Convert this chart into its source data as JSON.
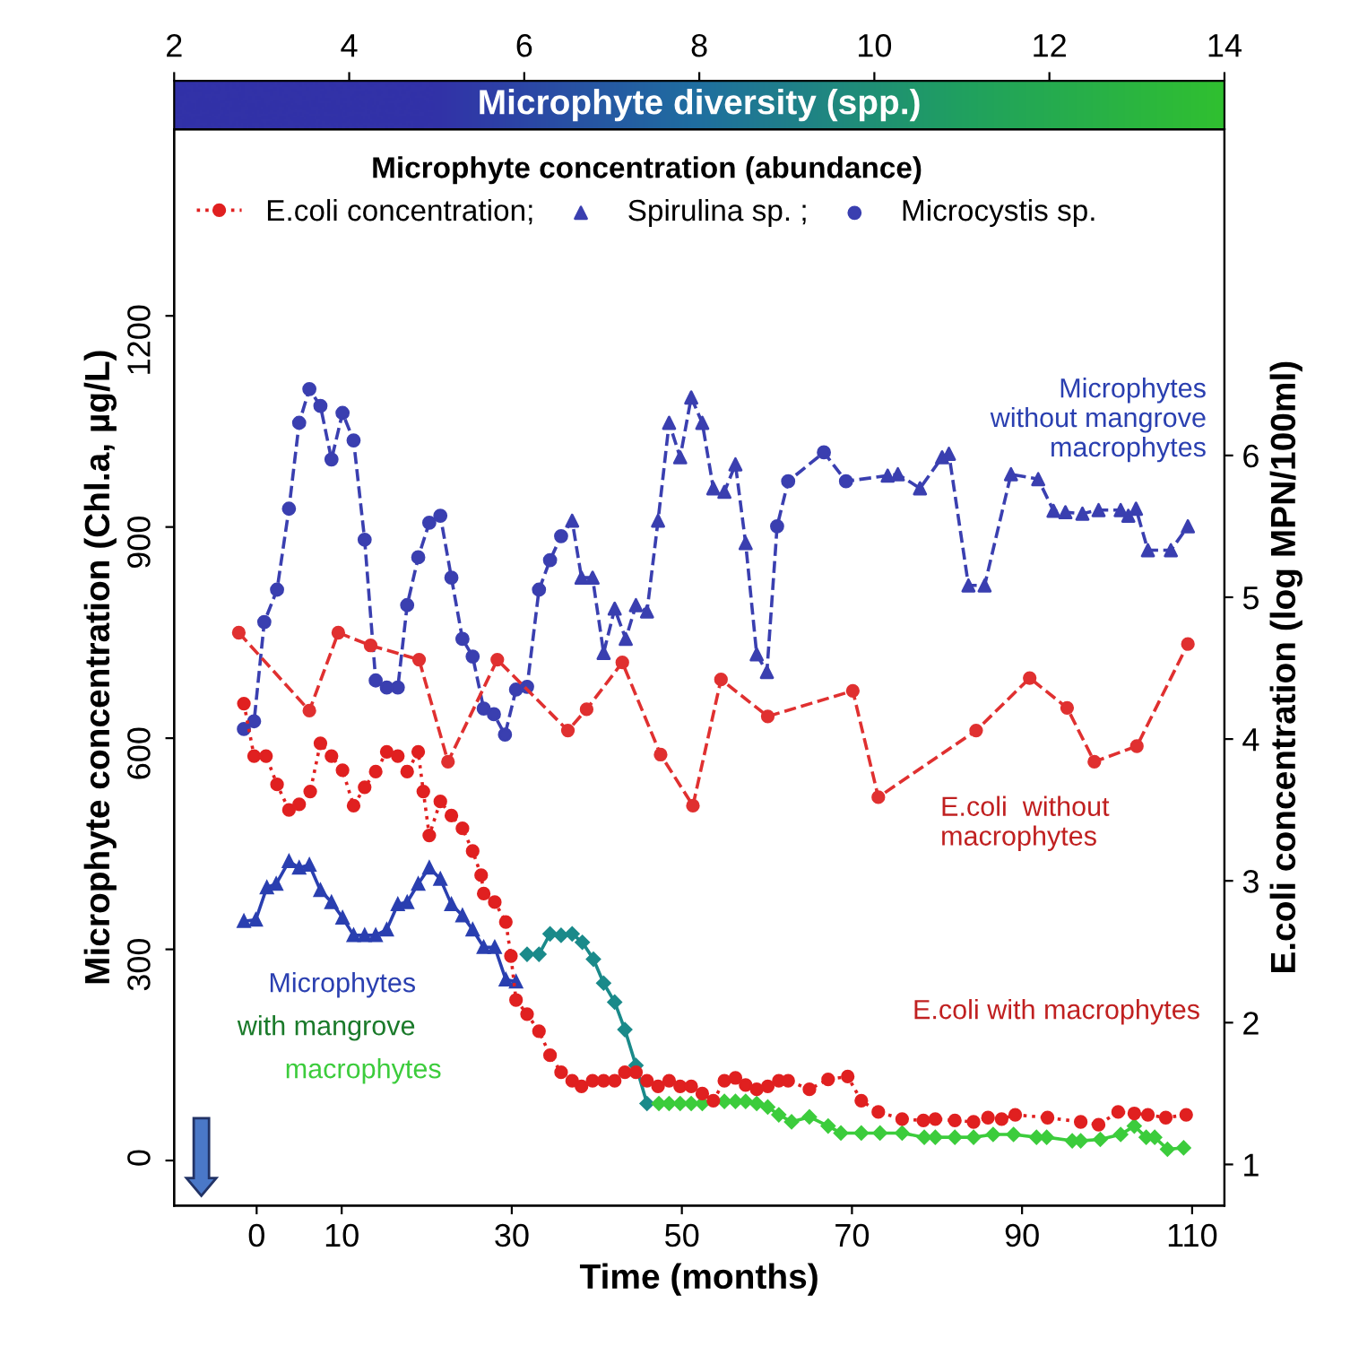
{
  "chart_data": {
    "type": "line",
    "xlabel": "Time (months)",
    "ylabel": "Microphyte concentration (Chl.a, µg/L)",
    "y2label": "E.coli concentration (log MPN/100ml)",
    "x2label": "Microphyte diversity (spp.)",
    "x2lim": [
      2,
      14
    ],
    "x2ticks": [
      2,
      4,
      6,
      8,
      10,
      12,
      14
    ],
    "xlim": [
      -9.7,
      113.8
    ],
    "xticks": [
      0,
      10,
      30,
      50,
      70,
      90,
      110
    ],
    "ylim": [
      -64,
      1465
    ],
    "yticks": [
      0,
      300,
      600,
      900,
      1200
    ],
    "y2lim": [
      0.71,
      8.3
    ],
    "y2ticks": [
      1,
      2,
      3,
      4,
      5,
      6
    ],
    "legend": "top",
    "legend_title": "Microphyte concentration (abundance)",
    "grid": false,
    "series": [
      {
        "color": "#3a3fb0",
        "line_style": "dashed",
        "marker": "none",
        "x": [
          -1.5,
          -0.3,
          0.9,
          2.4,
          3.8,
          5.0,
          6.2,
          7.5,
          8.8,
          10.1,
          11.4,
          12.7,
          14.0,
          15.3,
          16.6,
          17.7,
          19.0,
          20.3,
          21.6,
          22.9,
          24.2,
          25.4,
          26.7,
          27.9,
          29.2,
          30.5,
          31.8,
          33.2,
          34.5,
          35.8,
          37.1,
          38.2,
          39.5,
          40.8,
          42.1,
          43.4,
          44.6,
          45.9,
          47.2,
          48.5,
          49.8,
          51.1,
          52.4,
          53.7,
          55.0,
          56.3,
          57.5,
          58.8,
          60.0,
          61.2,
          62.5,
          66.7,
          69.3,
          74.2,
          75.4,
          78.0,
          80.6,
          81.4,
          83.7,
          85.6,
          88.7,
          91.9,
          93.7,
          95.1,
          97.1,
          99.0,
          101.6,
          102.5,
          103.4,
          104.8,
          107.5,
          109.5
        ],
        "values": [
          613,
          624,
          765,
          811,
          926,
          1048,
          1096,
          1072,
          996,
          1062,
          1023,
          882,
          682,
          672,
          672,
          789,
          857,
          906,
          916,
          828,
          741,
          716,
          642,
          634,
          605,
          669,
          673,
          811,
          853,
          887,
          909,
          828,
          828,
          721,
          784,
          741,
          789,
          780,
          909,
          1048,
          999,
          1084,
          1048,
          955,
          950,
          989,
          877,
          719,
          694,
          901,
          965,
          1006,
          965,
          973,
          975,
          955,
          999,
          1004,
          817,
          817,
          975,
          968,
          923,
          921,
          919,
          924,
          924,
          916,
          926,
          867,
          867,
          901
        ]
      },
      {
        "type": "scatter",
        "name": "Microcystis sp.",
        "color": "#3a3fb0",
        "marker": "circle",
        "x": [
          -1.5,
          -0.3,
          0.9,
          2.4,
          3.8,
          5.0,
          6.2,
          7.5,
          8.8,
          10.1,
          11.4,
          12.7,
          14.0,
          15.3,
          16.6,
          17.7,
          19.0,
          20.3,
          21.6,
          22.9,
          24.2,
          25.4,
          26.7,
          27.9,
          29.2,
          30.5,
          31.8,
          33.2,
          34.5,
          35.8,
          61.2,
          62.5,
          66.7,
          69.3
        ],
        "values": [
          613,
          624,
          765,
          811,
          926,
          1048,
          1096,
          1072,
          996,
          1062,
          1023,
          882,
          682,
          672,
          672,
          789,
          857,
          906,
          916,
          828,
          741,
          716,
          642,
          634,
          605,
          669,
          673,
          811,
          853,
          887,
          901,
          965,
          1006,
          965
        ]
      },
      {
        "type": "scatter",
        "name": "Spirulina sp. ;",
        "color": "#3a3fb0",
        "marker": "triangle",
        "x": [
          37.1,
          38.2,
          39.5,
          40.8,
          42.1,
          43.4,
          44.6,
          45.9,
          47.2,
          48.5,
          49.8,
          51.1,
          52.4,
          53.7,
          55.0,
          56.3,
          57.5,
          58.8,
          60.0,
          74.2,
          75.4,
          78.0,
          80.6,
          81.4,
          83.7,
          85.6,
          88.7,
          91.9,
          93.7,
          95.1,
          97.1,
          99.0,
          101.6,
          102.5,
          103.4,
          104.8,
          107.5,
          109.5
        ],
        "values": [
          909,
          828,
          828,
          721,
          784,
          741,
          789,
          780,
          909,
          1048,
          999,
          1084,
          1048,
          955,
          950,
          989,
          877,
          719,
          694,
          973,
          975,
          955,
          999,
          1004,
          817,
          817,
          975,
          968,
          923,
          921,
          919,
          924,
          924,
          916,
          926,
          867,
          867,
          901
        ]
      },
      {
        "axis": "y2",
        "color": "#e03030",
        "line_style": "dashed",
        "marker": "circle",
        "x": [
          -2.1,
          6.2,
          9.6,
          13.4,
          19.1,
          22.5,
          28.3,
          36.6,
          38.8,
          43.0,
          47.5,
          51.3,
          54.6,
          60.1,
          70.1,
          73.1,
          84.6,
          90.9,
          95.3,
          98.5,
          103.5,
          109.5
        ],
        "values": [
          4.75,
          4.2,
          4.75,
          4.66,
          4.56,
          3.84,
          4.56,
          4.06,
          4.21,
          4.54,
          3.89,
          3.53,
          4.42,
          4.16,
          4.34,
          3.59,
          4.06,
          4.43,
          4.22,
          3.84,
          3.95,
          4.67
        ]
      },
      {
        "axis": "y2",
        "name": "E.coli concentration;",
        "color": "#e02020",
        "line_style": "dotted",
        "marker": "circle",
        "x": [
          -1.5,
          -0.3,
          1.1,
          2.4,
          3.8,
          5.0,
          6.3,
          7.5,
          8.8,
          10.1,
          11.4,
          12.7,
          14.0,
          15.3,
          16.6,
          17.7,
          19.0,
          19.6,
          20.3,
          21.6,
          22.9,
          24.2,
          25.4,
          26.4,
          26.7,
          28.0,
          29.3,
          29.9,
          30.5,
          31.8,
          33.2,
          34.5,
          35.8,
          37.1,
          38.2,
          39.5,
          40.8,
          42.1,
          43.3,
          44.6,
          45.9,
          47.2,
          48.5,
          49.8,
          51.1,
          52.4,
          53.7,
          55.0,
          56.3,
          57.5,
          58.8,
          60.1,
          61.4,
          62.5,
          65.0,
          67.2,
          69.5,
          71.1,
          73.1,
          75.9,
          78.4,
          79.8,
          82.1,
          84.3,
          86.0,
          87.6,
          89.2,
          93.0,
          96.9,
          99.0,
          101.3,
          103.2,
          104.8,
          106.9,
          109.3
        ],
        "values": [
          4.25,
          3.88,
          3.88,
          3.68,
          3.5,
          3.54,
          3.63,
          3.97,
          3.88,
          3.78,
          3.53,
          3.66,
          3.77,
          3.91,
          3.88,
          3.77,
          3.91,
          3.63,
          3.32,
          3.56,
          3.46,
          3.37,
          3.21,
          3.04,
          2.91,
          2.85,
          2.71,
          2.47,
          2.16,
          2.06,
          1.94,
          1.77,
          1.65,
          1.59,
          1.55,
          1.59,
          1.59,
          1.59,
          1.65,
          1.65,
          1.59,
          1.55,
          1.59,
          1.55,
          1.55,
          1.5,
          1.45,
          1.59,
          1.61,
          1.56,
          1.53,
          1.55,
          1.59,
          1.59,
          1.53,
          1.6,
          1.62,
          1.45,
          1.37,
          1.32,
          1.31,
          1.32,
          1.31,
          1.3,
          1.33,
          1.32,
          1.35,
          1.33,
          1.3,
          1.28,
          1.37,
          1.36,
          1.35,
          1.33,
          1.35
        ]
      },
      {
        "color": "#2a3fb0",
        "line_style": "solid",
        "marker": "triangle",
        "x": [
          -1.5,
          -0.1,
          1.2,
          2.3,
          3.8,
          5.0,
          6.2,
          7.5,
          8.8,
          10.1,
          11.4,
          12.7,
          14.0,
          15.3,
          16.6,
          17.7,
          19.0,
          20.3,
          21.6,
          22.9,
          24.2,
          25.4,
          26.7,
          28.0,
          29.3,
          30.5
        ],
        "values": [
          340,
          342,
          388,
          393,
          425,
          416,
          420,
          384,
          367,
          345,
          320,
          320,
          320,
          328,
          364,
          367,
          393,
          416,
          400,
          364,
          348,
          328,
          303,
          303,
          257,
          254
        ]
      },
      {
        "color": "#1a8a8a",
        "line_style": "solid",
        "marker": "diamond",
        "x": [
          31.8,
          33.2,
          34.5,
          35.8,
          37.1,
          38.3,
          39.6,
          40.8,
          42.1,
          43.3,
          44.6,
          45.9
        ],
        "values": [
          293,
          293,
          322,
          320,
          322,
          310,
          286,
          252,
          225,
          186,
          135,
          81
        ]
      },
      {
        "color": "#3ccc3c",
        "line_style": "solid",
        "marker": "diamond",
        "x": [
          47.3,
          48.5,
          49.8,
          51.1,
          52.4,
          55.0,
          56.3,
          57.5,
          58.8,
          60.1,
          61.4,
          62.9,
          65.0,
          67.2,
          68.7,
          71.1,
          73.3,
          75.9,
          78.5,
          79.8,
          82.1,
          84.3,
          86.6,
          89.0,
          91.7,
          92.9,
          95.9,
          96.9,
          99.2,
          101.6,
          103.2,
          104.6,
          105.6,
          107.1,
          109.0
        ],
        "values": [
          81,
          81,
          81,
          81,
          81,
          84,
          84,
          84,
          81,
          76,
          65,
          55,
          62,
          49,
          39,
          39,
          39,
          39,
          33,
          33,
          33,
          33,
          37,
          37,
          33,
          33,
          28,
          28,
          30,
          37,
          49,
          33,
          33,
          16,
          18
        ]
      }
    ],
    "annotations": [
      "Microphytes\nwithout mangrove\nmacrophytes",
      "E.coli  without\nmacrophytes",
      "Microphytes\nwith mangrove\nmacrophytes",
      "E.coli with macrophytes"
    ]
  }
}
